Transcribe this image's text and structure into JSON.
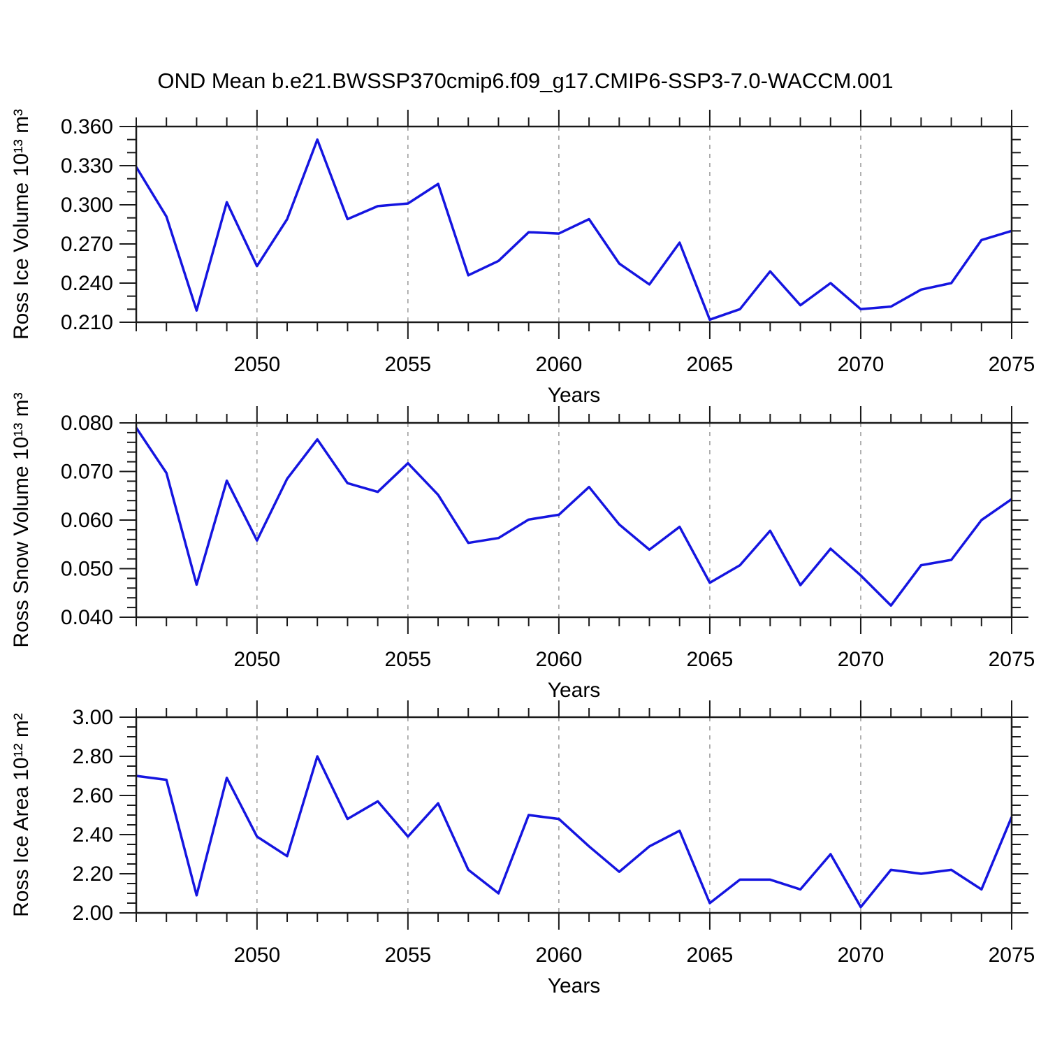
{
  "title": "OND Mean b.e21.BWSSP370cmip6.f09_g17.CMIP6-SSP3-7.0-WACCM.001",
  "colors": {
    "line": "#1515e0",
    "grid": "#9a9a9a",
    "axis": "#1a1a1a"
  },
  "chart_data": [
    {
      "type": "line",
      "name": "ross-ice-volume",
      "ylabel": "Ross Ice Volume 10¹³ m³",
      "xlabel": "Years",
      "line_color": "#1515e0",
      "x": [
        2046,
        2047,
        2048,
        2049,
        2050,
        2051,
        2052,
        2053,
        2054,
        2055,
        2056,
        2057,
        2058,
        2059,
        2060,
        2061,
        2062,
        2063,
        2064,
        2065,
        2066,
        2067,
        2068,
        2069,
        2070,
        2071,
        2072,
        2073,
        2074,
        2075
      ],
      "values": [
        0.329,
        0.291,
        0.219,
        0.302,
        0.253,
        0.289,
        0.35,
        0.289,
        0.299,
        0.301,
        0.316,
        0.246,
        0.257,
        0.279,
        0.278,
        0.289,
        0.255,
        0.239,
        0.271,
        0.212,
        0.22,
        0.249,
        0.223,
        0.24,
        0.22,
        0.222,
        0.235,
        0.24,
        0.273,
        0.28
      ],
      "ylim": [
        0.21,
        0.36
      ],
      "yticks": [
        0.21,
        0.24,
        0.27,
        0.3,
        0.33,
        0.36
      ],
      "yminor_step": 0.01,
      "ytick_decimals": 3,
      "xlim": [
        2046,
        2075
      ],
      "xticks": [
        2050,
        2055,
        2060,
        2065,
        2070,
        2075
      ],
      "xminor_step": 1,
      "grid": "vertical-dashed"
    },
    {
      "type": "line",
      "name": "ross-snow-volume",
      "ylabel": "Ross Snow Volume 10¹³ m³",
      "xlabel": "Years",
      "line_color": "#1515e0",
      "x": [
        2046,
        2047,
        2048,
        2049,
        2050,
        2051,
        2052,
        2053,
        2054,
        2055,
        2056,
        2057,
        2058,
        2059,
        2060,
        2061,
        2062,
        2063,
        2064,
        2065,
        2066,
        2067,
        2068,
        2069,
        2070,
        2071,
        2072,
        2073,
        2074,
        2075
      ],
      "values": [
        0.079,
        0.0697,
        0.0467,
        0.0681,
        0.0558,
        0.0685,
        0.0766,
        0.0676,
        0.0658,
        0.0717,
        0.0652,
        0.0553,
        0.0563,
        0.0601,
        0.0611,
        0.0668,
        0.0591,
        0.0539,
        0.0586,
        0.0471,
        0.0507,
        0.0578,
        0.0466,
        0.0541,
        0.0486,
        0.0424,
        0.0507,
        0.0518,
        0.06,
        0.0643
      ],
      "ylim": [
        0.04,
        0.08
      ],
      "yticks": [
        0.04,
        0.05,
        0.06,
        0.07,
        0.08
      ],
      "yminor_step": 0.002,
      "ytick_decimals": 3,
      "xlim": [
        2046,
        2075
      ],
      "xticks": [
        2050,
        2055,
        2060,
        2065,
        2070,
        2075
      ],
      "xminor_step": 1,
      "grid": "vertical-dashed"
    },
    {
      "type": "line",
      "name": "ross-ice-area",
      "ylabel": "Ross Ice Area 10¹² m²",
      "xlabel": "Years",
      "line_color": "#1515e0",
      "x": [
        2046,
        2047,
        2048,
        2049,
        2050,
        2051,
        2052,
        2053,
        2054,
        2055,
        2056,
        2057,
        2058,
        2059,
        2060,
        2061,
        2062,
        2063,
        2064,
        2065,
        2066,
        2067,
        2068,
        2069,
        2070,
        2071,
        2072,
        2073,
        2074,
        2075
      ],
      "values": [
        2.7,
        2.68,
        2.09,
        2.69,
        2.39,
        2.29,
        2.8,
        2.48,
        2.57,
        2.39,
        2.56,
        2.22,
        2.1,
        2.5,
        2.48,
        2.34,
        2.21,
        2.34,
        2.42,
        2.05,
        2.17,
        2.17,
        2.12,
        2.3,
        2.03,
        2.22,
        2.2,
        2.22,
        2.12,
        2.49
      ],
      "ylim": [
        2.0,
        3.0
      ],
      "yticks": [
        2.0,
        2.2,
        2.4,
        2.6,
        2.8,
        3.0
      ],
      "yminor_step": 0.05,
      "ytick_decimals": 2,
      "xlim": [
        2046,
        2075
      ],
      "xticks": [
        2050,
        2055,
        2060,
        2065,
        2070,
        2075
      ],
      "xminor_step": 1,
      "grid": "vertical-dashed"
    }
  ]
}
